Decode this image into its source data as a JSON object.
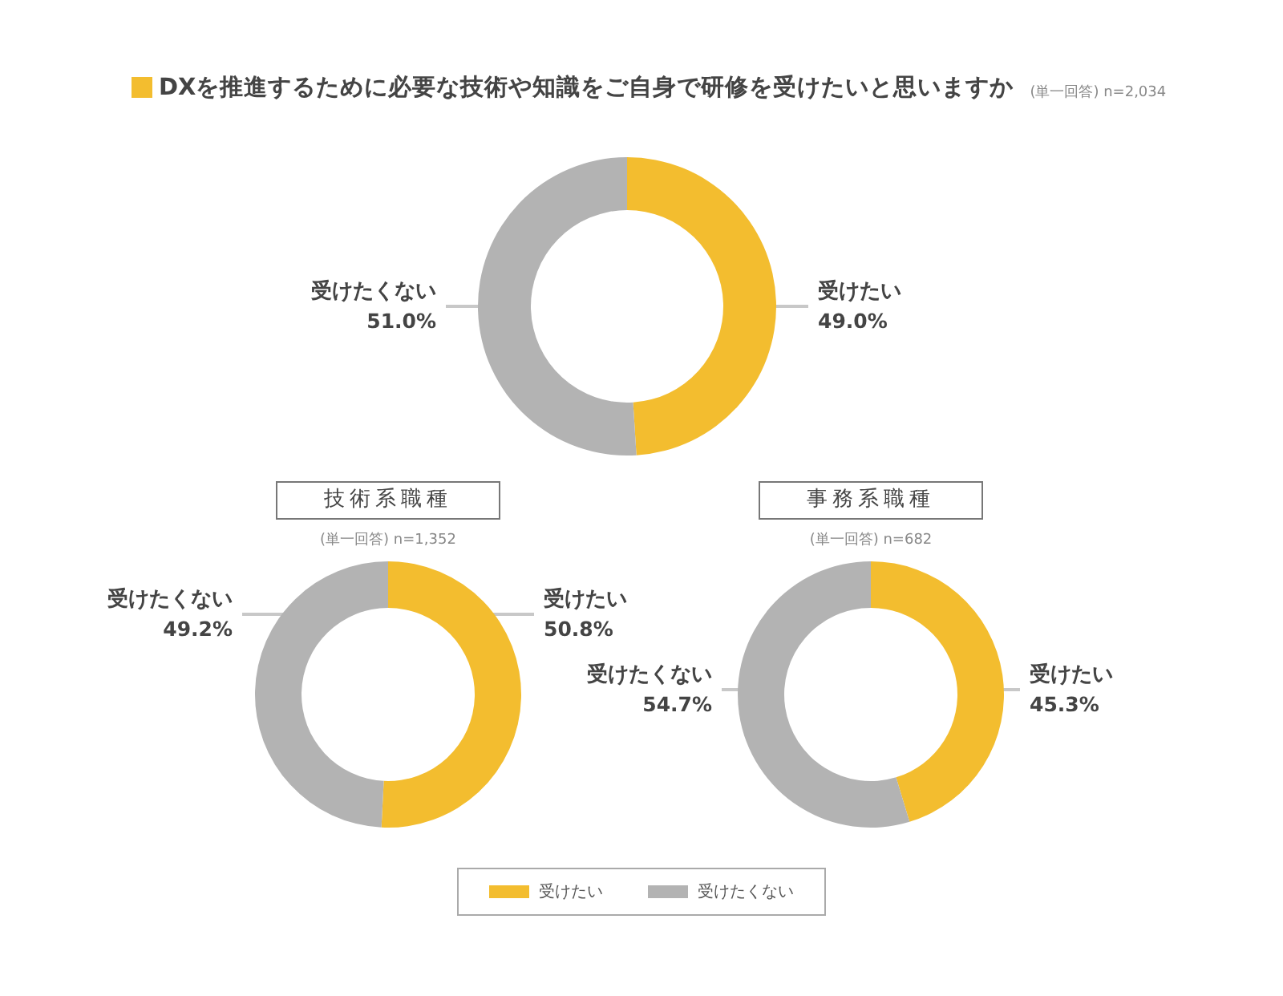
{
  "chart_data": [
    {
      "type": "donut",
      "title": "DXを推進するために必要な技術や知識をご自身で研修を受けたいと思いますか",
      "subtitle": "(単一回答) n=2,034",
      "categories": [
        "受けたい",
        "受けたくない"
      ],
      "values": [
        49.0,
        51.0
      ],
      "value_labels": [
        "49.0%",
        "51.0%"
      ],
      "colors": [
        "#f3bd2f",
        "#b3b3b3"
      ],
      "legend": "bottom"
    },
    {
      "type": "donut",
      "title": "技術系職種",
      "subtitle": "(単一回答) n=1,352",
      "categories": [
        "受けたい",
        "受けたくない"
      ],
      "values": [
        50.8,
        49.2
      ],
      "value_labels": [
        "50.8%",
        "49.2%"
      ],
      "colors": [
        "#f3bd2f",
        "#b3b3b3"
      ]
    },
    {
      "type": "donut",
      "title": "事務系職種",
      "subtitle": "(単一回答) n=682",
      "categories": [
        "受けたい",
        "受けたくない"
      ],
      "values": [
        45.3,
        54.7
      ],
      "value_labels": [
        "45.3%",
        "54.7%"
      ],
      "colors": [
        "#f3bd2f",
        "#b3b3b3"
      ]
    }
  ]
}
